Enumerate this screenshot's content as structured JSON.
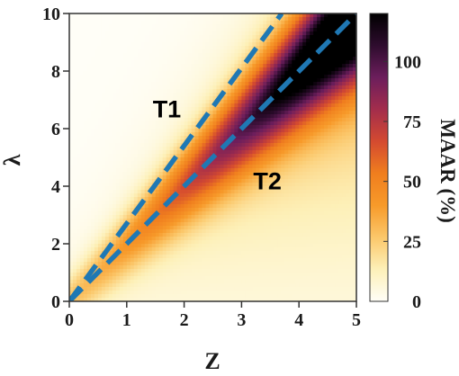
{
  "chart_data": {
    "type": "heatmap",
    "title": "",
    "xlabel": "Z",
    "ylabel": "λ",
    "xlim": [
      0,
      5
    ],
    "ylim": [
      0,
      10
    ],
    "x_ticks": [
      "0",
      "1",
      "2",
      "3",
      "4",
      "5"
    ],
    "y_ticks": [
      "0",
      "2",
      "4",
      "6",
      "8",
      "10"
    ],
    "colorbar": {
      "label": "MAAR (%)",
      "range": [
        0,
        120
      ],
      "ticks": [
        "0",
        "25",
        "50",
        "75",
        "100"
      ],
      "colors": [
        "#fffef7",
        "#fdf0b8",
        "#fbc76a",
        "#f79a2a",
        "#f07e1e",
        "#d44a30",
        "#a32d4c",
        "#6c1e5c",
        "#2e0c2e",
        "#000000"
      ]
    },
    "lines": [
      {
        "style": "dashed",
        "color": "#1f78b4",
        "x": [
          0,
          3.7
        ],
        "y": [
          0,
          10
        ]
      },
      {
        "style": "dashed",
        "color": "#1f78b4",
        "x": [
          0,
          5
        ],
        "y": [
          0,
          10
        ]
      }
    ],
    "regions": [
      {
        "label": "T1",
        "x": 1.7,
        "y": 6.7
      },
      {
        "label": "T2",
        "x": 3.45,
        "y": 4.2
      }
    ]
  }
}
